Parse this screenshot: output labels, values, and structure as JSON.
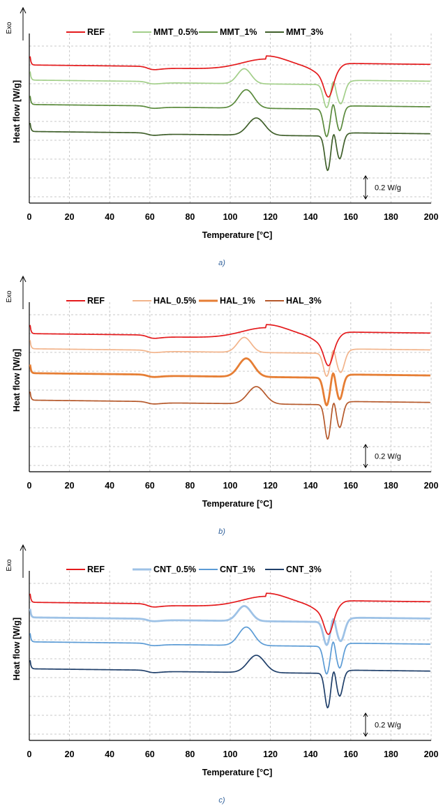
{
  "chart_data": [
    {
      "type": "line",
      "caption": "a)",
      "xlabel": "Temperature [°C]",
      "ylabel": "Heat flow [W/g]",
      "exo_label": "Exo",
      "scale_label": "0.2 W/g",
      "scale_bar_wg": 0.2,
      "xlim": [
        0,
        200
      ],
      "x_ticks": [
        "0",
        "20",
        "40",
        "60",
        "80",
        "100",
        "120",
        "140",
        "160",
        "180",
        "200"
      ],
      "grid": true,
      "legend_position": "top",
      "series": [
        {
          "name": "REF",
          "color": "#e41a1c",
          "offset": 0.0,
          "profile": "ref"
        },
        {
          "name": "MMT_0.5%",
          "color": "#a3cf8a",
          "offset": -0.12,
          "profile": "c05"
        },
        {
          "name": "MMT_1%",
          "color": "#5a8a3c",
          "offset": -0.29,
          "profile": "c1"
        },
        {
          "name": "MMT_3%",
          "color": "#3f5f2a",
          "offset": -0.46,
          "profile": "c3"
        }
      ]
    },
    {
      "type": "line",
      "caption": "b)",
      "xlabel": "Temperature [°C]",
      "ylabel": "Heat flow [W/g]",
      "exo_label": "Exo",
      "scale_label": "0.2 W/g",
      "scale_bar_wg": 0.2,
      "xlim": [
        0,
        200
      ],
      "x_ticks": [
        "0",
        "20",
        "40",
        "60",
        "80",
        "100",
        "120",
        "140",
        "160",
        "180",
        "200"
      ],
      "grid": true,
      "legend_position": "top",
      "series": [
        {
          "name": "REF",
          "color": "#e41a1c",
          "offset": 0.0,
          "profile": "ref"
        },
        {
          "name": "HAL_0.5%",
          "color": "#f2b48b",
          "offset": -0.11,
          "profile": "c05"
        },
        {
          "name": "HAL_1%",
          "color": "#e67e34",
          "offset": -0.3,
          "profile": "c1",
          "thick": true
        },
        {
          "name": "HAL_3%",
          "color": "#b5582a",
          "offset": -0.44,
          "profile": "c3"
        }
      ]
    },
    {
      "type": "line",
      "caption": "c)",
      "xlabel": "Temperature [°C]",
      "ylabel": "Heat flow [W/g]",
      "exo_label": "Exo",
      "scale_label": "0.2 W/g",
      "scale_bar_wg": 0.2,
      "xlim": [
        0,
        200
      ],
      "x_ticks": [
        "0",
        "20",
        "40",
        "60",
        "80",
        "100",
        "120",
        "140",
        "160",
        "180",
        "200"
      ],
      "grid": true,
      "legend_position": "top",
      "series": [
        {
          "name": "REF",
          "color": "#e41a1c",
          "offset": 0.0,
          "profile": "ref"
        },
        {
          "name": "CNT_0.5%",
          "color": "#9ec2e6",
          "offset": -0.1,
          "profile": "c05",
          "thick": true
        },
        {
          "name": "CNT_1%",
          "color": "#5b9bd5",
          "offset": -0.26,
          "profile": "c1"
        },
        {
          "name": "CNT_3%",
          "color": "#1f3f6a",
          "offset": -0.44,
          "profile": "c3"
        }
      ]
    }
  ]
}
